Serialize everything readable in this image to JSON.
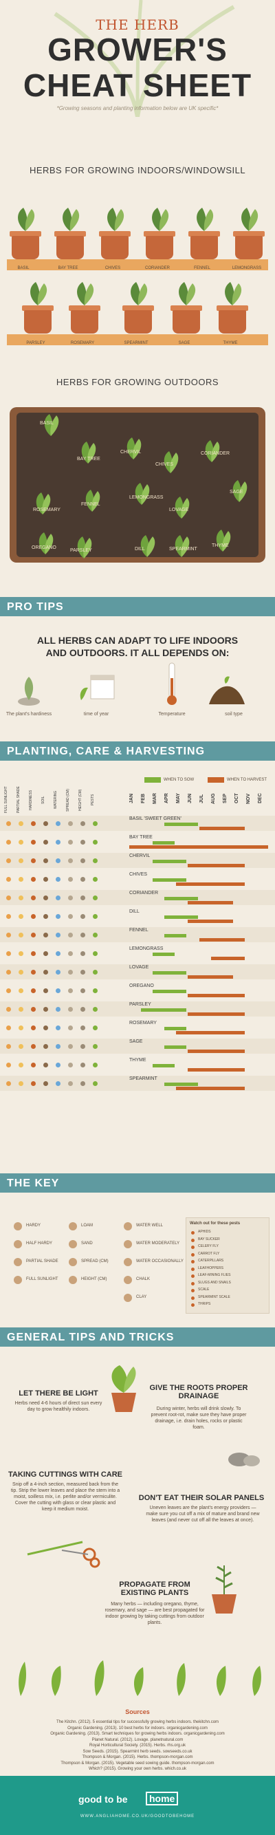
{
  "header": {
    "sub": "THE HERB",
    "main": "GROWER'S",
    "main2": "CHEAT SHEET",
    "note": "*Growing seasons and planting information below are UK specific*"
  },
  "indoors": {
    "title": "HERBS FOR GROWING INDOORS/WINDOWSILL",
    "row1": [
      "BASIL",
      "BAY TREE",
      "CHIVES",
      "CORIANDER",
      "FENNEL",
      "LEMONGRASS"
    ],
    "row2": [
      "PARSLEY",
      "ROSEMARY",
      "SPEARMINT",
      "SAGE",
      "THYME"
    ]
  },
  "outdoors": {
    "title": "HERBS FOR GROWING OUTDOORS",
    "labels": [
      "BASIL",
      "BAY TREE",
      "CHERVIL",
      "CHIVES",
      "CORIANDER",
      "ROSEMARY",
      "FENNEL",
      "LEMONGRASS",
      "SAGE",
      "LOVAGE",
      "OREGANO",
      "PARSLEY",
      "DILL",
      "SPEARMINT",
      "THYME"
    ]
  },
  "pro_tips": {
    "band": "PRO TIPS",
    "text1": "ALL HERBS CAN ADAPT TO LIFE INDOORS",
    "text2": "AND OUTDOORS. IT ALL DEPENDS ON:",
    "factors": [
      "The plant's hardiness",
      "time of year",
      "Temperature",
      "soil type"
    ]
  },
  "planting": {
    "band": "PLANTING, CARE & HARVESTING",
    "legend_sow": "WHEN TO SOW",
    "legend_harvest": "WHEN TO HARVEST",
    "col_heads": [
      "FULL SUNLIGHT",
      "PARTIAL SHADE",
      "HARDINESS",
      "SOIL",
      "WATERING",
      "SPREAD (CM)",
      "HEIGHT (CM)",
      "PESTS"
    ],
    "months": [
      "JAN",
      "FEB",
      "MAR",
      "APR",
      "MAY",
      "JUN",
      "JUL",
      "AUG",
      "SEP",
      "OCT",
      "NOV",
      "DEC"
    ],
    "herbs": [
      "BASIL 'SWEET GREEN'",
      "BAY TREE",
      "CHERVIL",
      "CHIVES",
      "CORIANDER",
      "DILL",
      "FENNEL",
      "LEMONGRASS",
      "LOVAGE",
      "OREGANO",
      "PARSLEY",
      "ROSEMARY",
      "SAGE",
      "THYME",
      "SPEARMINT"
    ],
    "colors": {
      "sow": "#7fb23a",
      "harvest": "#c8642a"
    }
  },
  "key": {
    "band": "THE KEY",
    "col1": [
      "HARDY",
      "HALF HARDY",
      "PARTIAL SHADE",
      "FULL SUNLIGHT"
    ],
    "col2": [
      "LOAM",
      "SAND",
      "SPREAD (CM)",
      "HEIGHT (CM)"
    ],
    "col3": [
      "WATER WELL",
      "WATER MODERATELY",
      "WATER OCCASIONALLY",
      "CHALK",
      "CLAY"
    ],
    "pests_title": "Watch out for these pests",
    "pests": [
      "APHIDS",
      "BAY SUCKER",
      "CELERY FLY",
      "CARROT FLY",
      "CATERPILLARS",
      "LEAFHOPPERS",
      "LEAF-MINING FLIES",
      "SLUGS AND SNAILS",
      "SCALE",
      "SPEARMINT SCALE",
      "THRIPS"
    ]
  },
  "general": {
    "band": "GENERAL TIPS AND TRICKS",
    "t1h": "LET THERE BE LIGHT",
    "t1b": "Herbs need 4-6 hours of direct sun every day to grow healthily indoors.",
    "t2h": "GIVE THE ROOTS PROPER DRAINAGE",
    "t2b": "During winter, herbs will drink slowly. To prevent root-rot, make sure they have proper drainage, i.e. drain holes, rocks or plastic foam.",
    "t3h": "TAKING CUTTINGS WITH CARE",
    "t3b": "Snip off a 4-inch section, measured back from the tip. Strip the lower leaves and place the stem into a moist, soilless mix, i.e. perlite and/or vermiculite. Cover the cutting with glass or clear plastic and keep it medium moist.",
    "t4h": "DON'T EAT THEIR SOLAR PANELS",
    "t4b": "Uneven leaves are the plant's energy providers — make sure you cut off a mix of mature and brand new leaves (and never cut off all the leaves at once).",
    "t5h": "PROPAGATE FROM EXISTING PLANTS",
    "t5b": "Many herbs — including oregano, thyme, rosemary, and sage — are best propagated for indoor growing by taking cuttings from outdoor plants."
  },
  "sources": {
    "title": "Sources",
    "lines": [
      "The Kitchn. (2012). 5 essential tips for successfully growing herbs indoors. thekitchn.com",
      "Organic Gardening. (2013). 10 best herbs for indoors. organicgardening.com",
      "Organic Gardening. (2013). Smart techniques for growing herbs indoors. organicgardening.com",
      "Planet Natural. (2012). Lovage. planetnatural.com",
      "Royal Horticultural Society. (2015). Herbs. rhs.org.uk",
      "Sow Seeds. (2015). Spearmint herb seeds. sowseeds.co.uk",
      "Thompson & Morgan. (2015). Herbs. thompson-morgan.com",
      "Thompson & Morgan. (2015). Vegetable seed sowing guide. thompson-morgan.com",
      "Which? (2015). Growing your own herbs. which.co.uk"
    ]
  },
  "footer": {
    "brand1": "good to be",
    "brand2": "home",
    "url": "WWW.ANGLIAHOME.CO.UK/GOODTOBEHOME"
  }
}
